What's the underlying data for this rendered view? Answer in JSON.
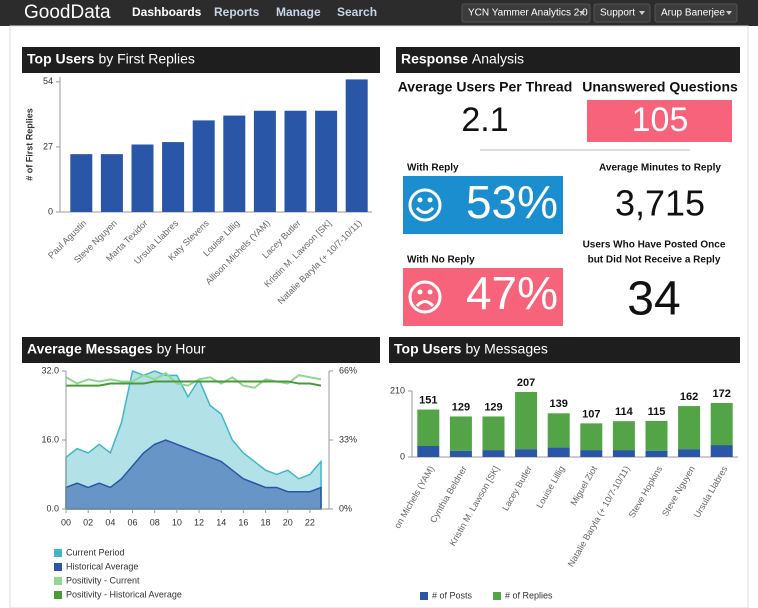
{
  "nav": {
    "logo": "GoodData",
    "tabs": [
      "Dashboards",
      "Reports",
      "Manage",
      "Search"
    ],
    "project": "YCN Yammer Analytics 2.0",
    "support": "Support",
    "user": "Arup Banerjee"
  },
  "response": {
    "title": "Response",
    "subtitle": "Analysis",
    "items": [
      {
        "label": [
          "Average Users Per Thread"
        ],
        "value": "2.1"
      },
      {
        "label": [
          "Unanswered Questions"
        ],
        "value": "105"
      },
      {
        "label": [
          "With Reply"
        ],
        "value": "53%"
      },
      {
        "label": [
          "Average Minutes to Reply"
        ],
        "value": "3,715"
      },
      {
        "label": [
          "With No Reply"
        ],
        "value": "47%"
      },
      {
        "label": [
          "Users Who Have Posted Once",
          "but Did Not Receive a Reply"
        ],
        "value": "34"
      }
    ]
  },
  "chart_data": [
    {
      "type": "bar",
      "title": "Top Users",
      "subtitle": "by First Replies",
      "ylabel": "# of First Replies",
      "categories": [
        "Paul Agustin",
        "Steve Nguyen",
        "Marta Texidor",
        "Ursula Llabres",
        "Katy Stevens",
        "Louise Lillig",
        "Allison Michels (YAM)",
        "Lacey Butler",
        "Kristin M. Lawson [SK]",
        "Natalie Baryla (+ 10/7-10/11)"
      ],
      "values": [
        24,
        24,
        28,
        29,
        38,
        40,
        42,
        42,
        42,
        55
      ],
      "color": "#2a56a8",
      "ylim": [
        0,
        56
      ],
      "yticks": [
        0,
        27,
        54
      ]
    },
    {
      "type": "area",
      "title": "Average Messages",
      "subtitle": "by Hour",
      "x": [
        0,
        1,
        2,
        3,
        4,
        5,
        6,
        7,
        8,
        9,
        10,
        11,
        12,
        13,
        14,
        15,
        16,
        17,
        18,
        19,
        20,
        21,
        22,
        23
      ],
      "xlim": [
        0,
        23
      ],
      "xticks": [
        {
          "value": 0,
          "label": "00"
        },
        {
          "value": 2,
          "label": "02"
        },
        {
          "value": 4,
          "label": "04"
        },
        {
          "value": 6,
          "label": "06"
        },
        {
          "value": 8,
          "label": "08"
        },
        {
          "value": 10,
          "label": "10"
        },
        {
          "value": 12,
          "label": "12"
        },
        {
          "value": 14,
          "label": "14"
        },
        {
          "value": 16,
          "label": "16"
        },
        {
          "value": 18,
          "label": "18"
        },
        {
          "value": 20,
          "label": "20"
        },
        {
          "value": 22,
          "label": "22"
        }
      ],
      "ylim": [
        0,
        32
      ],
      "yticks": [
        {
          "value": 0,
          "label": "0.0"
        },
        {
          "value": 16,
          "label": "16.0"
        },
        {
          "value": 32,
          "label": "32.0"
        }
      ],
      "y2lim": [
        0,
        66
      ],
      "y2ticks": [
        {
          "value": 0,
          "label": "0%"
        },
        {
          "value": 33,
          "label": "33%"
        },
        {
          "value": 66,
          "label": "66%"
        }
      ],
      "series": [
        {
          "name": "Current Period",
          "color": "#3fb7c6",
          "values": [
            12,
            14,
            13,
            15,
            13,
            20,
            32,
            31,
            32,
            31,
            31,
            26,
            30,
            24,
            22,
            16,
            13,
            11,
            9,
            8,
            9,
            7,
            8,
            11
          ]
        },
        {
          "name": "Historical Average",
          "color": "#2a56a8",
          "values": [
            5,
            6,
            5,
            6,
            5,
            7,
            10,
            13,
            15,
            16,
            15,
            14,
            13,
            12,
            11,
            9,
            7,
            6,
            5,
            5,
            4,
            4,
            4,
            5
          ]
        },
        {
          "name": "Positivity - Current",
          "color": "#8fd88f",
          "axis": "y2",
          "values": [
            63,
            60,
            62,
            61,
            62,
            61,
            61,
            64,
            62,
            65,
            60,
            59,
            62,
            63,
            60,
            63,
            59,
            58,
            62,
            61,
            60,
            64,
            63,
            62
          ]
        },
        {
          "name": "Positivity - Historical Average",
          "color": "#4a9a3a",
          "axis": "y2",
          "values": [
            59,
            59,
            59,
            59,
            60,
            60,
            60,
            60,
            61,
            61,
            61,
            61,
            61,
            61,
            61,
            61,
            61,
            61,
            61,
            61,
            61,
            60,
            60,
            59
          ]
        }
      ]
    },
    {
      "type": "stacked_bar",
      "title": "Top Users",
      "subtitle": "by Messages",
      "categories": [
        "on Michels (YAM)",
        "Cynthia Beldner",
        "Kristin M. Lawson [SK]",
        "Lacey Butler",
        "Louise Lillig",
        "Miguel Ziot",
        "Natalie Baryla (+ 10/7-10/11)",
        "Steve Hopkins",
        "Steve Nguyen",
        "Ursula Llabres"
      ],
      "totals": [
        151,
        129,
        129,
        207,
        139,
        107,
        114,
        115,
        162,
        172
      ],
      "ylim": [
        0,
        210
      ],
      "yticks": [
        0,
        210
      ],
      "series": [
        {
          "name": "# of Posts",
          "color": "#2a56a8",
          "values": [
            35,
            20,
            22,
            25,
            30,
            22,
            22,
            20,
            25,
            38
          ]
        },
        {
          "name": "# of Replies",
          "color": "#52a447",
          "values": [
            116,
            109,
            107,
            182,
            109,
            85,
            92,
            95,
            137,
            134
          ]
        }
      ]
    }
  ]
}
